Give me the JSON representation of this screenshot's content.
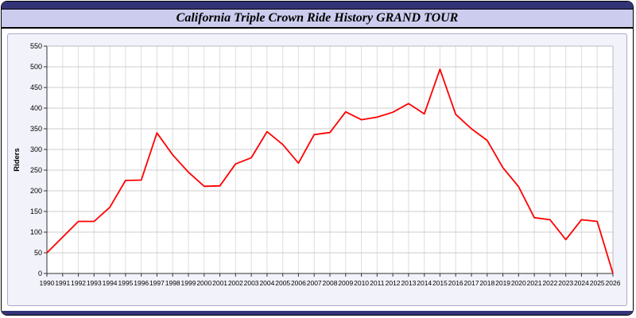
{
  "title": "California Triple Crown Ride History GRAND TOUR",
  "colors": {
    "top_bar": "#333377",
    "title_bg": "#ccccee",
    "panel_bg": "#f2f2fa",
    "plot_bg": "#ffffff",
    "grid": "#cccccc",
    "minor_grid": "#dddddd",
    "line": "#ff0000",
    "axis_text": "#000000"
  },
  "chart_data": {
    "type": "line",
    "title": "California Triple Crown Ride History GRAND TOUR",
    "xlabel": "",
    "ylabel": "Riders",
    "ylim": [
      0,
      550
    ],
    "ytick_step": 50,
    "grid": true,
    "legend": "none",
    "line_color": "#ff0000",
    "x": [
      1990,
      1991,
      1992,
      1993,
      1994,
      1995,
      1996,
      1997,
      1998,
      1999,
      2000,
      2001,
      2002,
      2003,
      2004,
      2005,
      2006,
      2007,
      2008,
      2009,
      2010,
      2011,
      2012,
      2013,
      2014,
      2015,
      2016,
      2017,
      2018,
      2019,
      2020,
      2021,
      2022,
      2023,
      2024,
      2025,
      2026
    ],
    "values": [
      50,
      88,
      126,
      126,
      160,
      225,
      226,
      340,
      287,
      245,
      211,
      212,
      265,
      280,
      343,
      312,
      267,
      336,
      341,
      391,
      372,
      378,
      390,
      411,
      386,
      494,
      385,
      350,
      322,
      256,
      210,
      135,
      130,
      82,
      130,
      126,
      0
    ]
  }
}
